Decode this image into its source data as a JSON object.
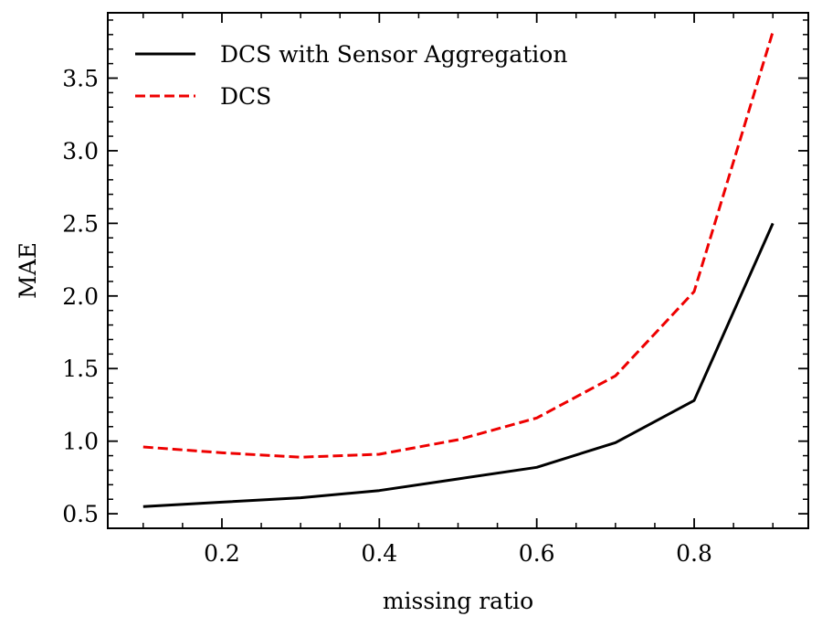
{
  "chart_data": {
    "type": "line",
    "xlabel": "missing ratio",
    "ylabel": "MAE",
    "xlim": [
      0.055,
      0.945
    ],
    "ylim": [
      0.4,
      3.95
    ],
    "x_ticks": [
      0.2,
      0.4,
      0.6,
      0.8
    ],
    "x_tick_labels": [
      "0.2",
      "0.4",
      "0.6",
      "0.8"
    ],
    "y_ticks": [
      0.5,
      1.0,
      1.5,
      2.0,
      2.5,
      3.0,
      3.5
    ],
    "y_tick_labels": [
      "0.5",
      "1.0",
      "1.5",
      "2.0",
      "2.5",
      "3.0",
      "3.5"
    ],
    "x_minor_step": 0.05,
    "y_minor_step": 0.1,
    "grid": false,
    "legend_position": "top-left",
    "x": [
      0.1,
      0.2,
      0.3,
      0.4,
      0.5,
      0.6,
      0.7,
      0.8,
      0.9
    ],
    "series": [
      {
        "name": "DCS with Sensor Aggregation",
        "color": "#000000",
        "dash": "solid",
        "values": [
          0.55,
          0.58,
          0.61,
          0.66,
          0.74,
          0.82,
          0.99,
          1.28,
          2.5
        ]
      },
      {
        "name": "DCS",
        "color": "#ee0000",
        "dash": "dashed",
        "values": [
          0.96,
          0.92,
          0.89,
          0.91,
          1.01,
          1.16,
          1.45,
          2.03,
          3.82
        ]
      }
    ]
  }
}
